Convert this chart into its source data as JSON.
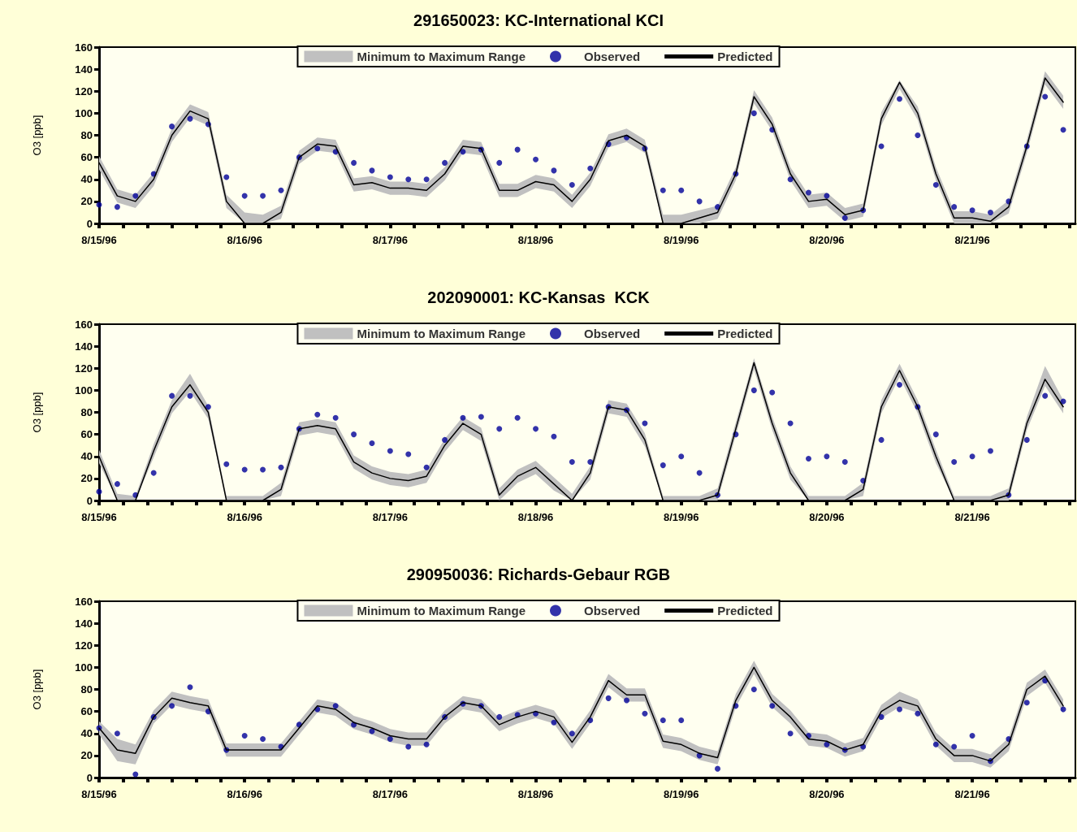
{
  "chart_data": [
    {
      "type": "line",
      "title": "291650023: KC-International KCI",
      "ylabel": "O3 [ppb]",
      "ylim": [
        0,
        160
      ],
      "yticks": [
        0,
        20,
        40,
        60,
        80,
        100,
        120,
        140,
        160
      ],
      "xlim": [
        "1996-08-15",
        "1996-08-21T17:00"
      ],
      "xticks": [
        {
          "value": "1996-08-15",
          "label": "8/15/96"
        },
        {
          "value": "1996-08-15T04:00",
          "label": null
        },
        {
          "value": "1996-08-15T08:00",
          "label": null
        },
        {
          "value": "1996-08-15T12:00",
          "label": null
        },
        {
          "value": "1996-08-15T16:00",
          "label": null
        },
        {
          "value": "1996-08-15T20:00",
          "label": null
        },
        {
          "value": "1996-08-16",
          "label": "8/16/96"
        },
        {
          "value": "1996-08-16T04:00",
          "label": null
        },
        {
          "value": "1996-08-16T08:00",
          "label": null
        },
        {
          "value": "1996-08-16T12:00",
          "label": null
        },
        {
          "value": "1996-08-16T16:00",
          "label": null
        },
        {
          "value": "1996-08-16T20:00",
          "label": null
        },
        {
          "value": "1996-08-17",
          "label": "8/17/96"
        },
        {
          "value": "1996-08-17T04:00",
          "label": null
        },
        {
          "value": "1996-08-17T08:00",
          "label": null
        },
        {
          "value": "1996-08-17T12:00",
          "label": null
        },
        {
          "value": "1996-08-17T16:00",
          "label": null
        },
        {
          "value": "1996-08-17T20:00",
          "label": null
        },
        {
          "value": "1996-08-18",
          "label": "8/18/96"
        },
        {
          "value": "1996-08-18T04:00",
          "label": null
        },
        {
          "value": "1996-08-18T08:00",
          "label": null
        },
        {
          "value": "1996-08-18T12:00",
          "label": null
        },
        {
          "value": "1996-08-18T16:00",
          "label": null
        },
        {
          "value": "1996-08-18T20:00",
          "label": null
        },
        {
          "value": "1996-08-19",
          "label": "8/19/96"
        },
        {
          "value": "1996-08-19T04:00",
          "label": null
        },
        {
          "value": "1996-08-19T08:00",
          "label": null
        },
        {
          "value": "1996-08-19T12:00",
          "label": null
        },
        {
          "value": "1996-08-19T16:00",
          "label": null
        },
        {
          "value": "1996-08-19T20:00",
          "label": null
        },
        {
          "value": "1996-08-20",
          "label": "8/20/96"
        },
        {
          "value": "1996-08-20T04:00",
          "label": null
        },
        {
          "value": "1996-08-20T08:00",
          "label": null
        },
        {
          "value": "1996-08-20T12:00",
          "label": null
        },
        {
          "value": "1996-08-20T16:00",
          "label": null
        },
        {
          "value": "1996-08-20T20:00",
          "label": null
        },
        {
          "value": "1996-08-21",
          "label": "8/21/96"
        },
        {
          "value": "1996-08-21T04:00",
          "label": null
        },
        {
          "value": "1996-08-21T08:00",
          "label": null
        },
        {
          "value": "1996-08-21T12:00",
          "label": null
        },
        {
          "value": "1996-08-21T16:00",
          "label": null
        }
      ],
      "x": [
        "1996-08-15T00:00",
        "1996-08-15T03:00",
        "1996-08-15T06:00",
        "1996-08-15T09:00",
        "1996-08-15T12:00",
        "1996-08-15T15:00",
        "1996-08-15T18:00",
        "1996-08-15T21:00",
        "1996-08-16T00:00",
        "1996-08-16T03:00",
        "1996-08-16T06:00",
        "1996-08-16T09:00",
        "1996-08-16T12:00",
        "1996-08-16T15:00",
        "1996-08-16T18:00",
        "1996-08-16T21:00",
        "1996-08-17T00:00",
        "1996-08-17T03:00",
        "1996-08-17T06:00",
        "1996-08-17T09:00",
        "1996-08-17T12:00",
        "1996-08-17T15:00",
        "1996-08-17T18:00",
        "1996-08-17T21:00",
        "1996-08-18T00:00",
        "1996-08-18T03:00",
        "1996-08-18T06:00",
        "1996-08-18T09:00",
        "1996-08-18T12:00",
        "1996-08-18T15:00",
        "1996-08-18T18:00",
        "1996-08-18T21:00",
        "1996-08-19T00:00",
        "1996-08-19T03:00",
        "1996-08-19T06:00",
        "1996-08-19T09:00",
        "1996-08-19T12:00",
        "1996-08-19T15:00",
        "1996-08-19T18:00",
        "1996-08-19T21:00",
        "1996-08-20T00:00",
        "1996-08-20T03:00",
        "1996-08-20T06:00",
        "1996-08-20T09:00",
        "1996-08-20T12:00",
        "1996-08-20T15:00",
        "1996-08-20T18:00",
        "1996-08-20T21:00",
        "1996-08-21T00:00",
        "1996-08-21T03:00",
        "1996-08-21T06:00",
        "1996-08-21T09:00",
        "1996-08-21T12:00",
        "1996-08-21T15:00"
      ],
      "legend": "top",
      "annotations": [
        "Minimum to Maximum Range"
      ],
      "series": [
        {
          "name": "Observed",
          "type": "scatter",
          "color": "#000099",
          "marker": "circle",
          "values": [
            17,
            15,
            25,
            45,
            88,
            95,
            90,
            42,
            25,
            25,
            30,
            60,
            68,
            65,
            55,
            48,
            42,
            40,
            40,
            55,
            65,
            67,
            55,
            67,
            58,
            48,
            35,
            50,
            72,
            78,
            68,
            30,
            30,
            20,
            15,
            45,
            100,
            85,
            40,
            28,
            25,
            5,
            12,
            70,
            113,
            80,
            35,
            15,
            12,
            10,
            20,
            70,
            115,
            85
          ]
        },
        {
          "name": "Predicted",
          "color": "#000000",
          "marker": "none",
          "values": [
            55,
            25,
            20,
            40,
            80,
            102,
            95,
            20,
            0,
            0,
            10,
            60,
            72,
            70,
            35,
            37,
            32,
            32,
            30,
            45,
            70,
            68,
            30,
            30,
            38,
            35,
            20,
            40,
            75,
            80,
            70,
            0,
            0,
            5,
            10,
            45,
            115,
            90,
            45,
            20,
            22,
            8,
            12,
            95,
            128,
            100,
            45,
            5,
            5,
            2,
            15,
            70,
            132,
            110
          ],
          "lower": [
            49,
            19,
            14,
            34,
            74,
            96,
            89,
            14,
            0,
            0,
            4,
            54,
            66,
            64,
            29,
            31,
            26,
            26,
            24,
            39,
            64,
            62,
            24,
            24,
            32,
            29,
            14,
            34,
            69,
            74,
            64,
            0,
            0,
            0,
            4,
            39,
            109,
            84,
            39,
            14,
            16,
            2,
            6,
            89,
            122,
            94,
            39,
            0,
            0,
            0,
            9,
            64,
            126,
            104
          ],
          "upper": [
            61,
            31,
            26,
            46,
            86,
            108,
            101,
            26,
            10,
            8,
            16,
            66,
            78,
            76,
            41,
            43,
            38,
            38,
            36,
            51,
            76,
            74,
            36,
            36,
            44,
            41,
            26,
            46,
            81,
            86,
            76,
            8,
            8,
            12,
            16,
            51,
            121,
            96,
            51,
            26,
            28,
            14,
            18,
            101,
            130,
            106,
            51,
            11,
            11,
            8,
            21,
            76,
            138,
            116
          ]
        }
      ]
    },
    {
      "type": "line",
      "title": "202090001: KC-Kansas  KCK",
      "ylabel": "O3 [ppb]",
      "ylim": [
        0,
        160
      ],
      "yticks": [
        0,
        20,
        40,
        60,
        80,
        100,
        120,
        140,
        160
      ],
      "xlim": [
        "1996-08-15",
        "1996-08-21T17:00"
      ],
      "xticks": [
        {
          "value": "1996-08-15",
          "label": "8/15/96"
        },
        {
          "value": "1996-08-15T04:00",
          "label": null
        },
        {
          "value": "1996-08-15T08:00",
          "label": null
        },
        {
          "value": "1996-08-15T12:00",
          "label": null
        },
        {
          "value": "1996-08-15T16:00",
          "label": null
        },
        {
          "value": "1996-08-15T20:00",
          "label": null
        },
        {
          "value": "1996-08-16",
          "label": "8/16/96"
        },
        {
          "value": "1996-08-16T04:00",
          "label": null
        },
        {
          "value": "1996-08-16T08:00",
          "label": null
        },
        {
          "value": "1996-08-16T12:00",
          "label": null
        },
        {
          "value": "1996-08-16T16:00",
          "label": null
        },
        {
          "value": "1996-08-16T20:00",
          "label": null
        },
        {
          "value": "1996-08-17",
          "label": "8/17/96"
        },
        {
          "value": "1996-08-17T04:00",
          "label": null
        },
        {
          "value": "1996-08-17T08:00",
          "label": null
        },
        {
          "value": "1996-08-17T12:00",
          "label": null
        },
        {
          "value": "1996-08-17T16:00",
          "label": null
        },
        {
          "value": "1996-08-17T20:00",
          "label": null
        },
        {
          "value": "1996-08-18",
          "label": "8/18/96"
        },
        {
          "value": "1996-08-18T04:00",
          "label": null
        },
        {
          "value": "1996-08-18T08:00",
          "label": null
        },
        {
          "value": "1996-08-18T12:00",
          "label": null
        },
        {
          "value": "1996-08-18T16:00",
          "label": null
        },
        {
          "value": "1996-08-18T20:00",
          "label": null
        },
        {
          "value": "1996-08-19",
          "label": "8/19/96"
        },
        {
          "value": "1996-08-19T04:00",
          "label": null
        },
        {
          "value": "1996-08-19T08:00",
          "label": null
        },
        {
          "value": "1996-08-19T12:00",
          "label": null
        },
        {
          "value": "1996-08-19T16:00",
          "label": null
        },
        {
          "value": "1996-08-19T20:00",
          "label": null
        },
        {
          "value": "1996-08-20",
          "label": "8/20/96"
        },
        {
          "value": "1996-08-20T04:00",
          "label": null
        },
        {
          "value": "1996-08-20T08:00",
          "label": null
        },
        {
          "value": "1996-08-20T12:00",
          "label": null
        },
        {
          "value": "1996-08-20T16:00",
          "label": null
        },
        {
          "value": "1996-08-20T20:00",
          "label": null
        },
        {
          "value": "1996-08-21",
          "label": "8/21/96"
        },
        {
          "value": "1996-08-21T04:00",
          "label": null
        },
        {
          "value": "1996-08-21T08:00",
          "label": null
        },
        {
          "value": "1996-08-21T12:00",
          "label": null
        },
        {
          "value": "1996-08-21T16:00",
          "label": null
        }
      ],
      "x": [
        "1996-08-15T00:00",
        "1996-08-15T03:00",
        "1996-08-15T06:00",
        "1996-08-15T09:00",
        "1996-08-15T12:00",
        "1996-08-15T15:00",
        "1996-08-15T18:00",
        "1996-08-15T21:00",
        "1996-08-16T00:00",
        "1996-08-16T03:00",
        "1996-08-16T06:00",
        "1996-08-16T09:00",
        "1996-08-16T12:00",
        "1996-08-16T15:00",
        "1996-08-16T18:00",
        "1996-08-16T21:00",
        "1996-08-17T00:00",
        "1996-08-17T03:00",
        "1996-08-17T06:00",
        "1996-08-17T09:00",
        "1996-08-17T12:00",
        "1996-08-17T15:00",
        "1996-08-17T18:00",
        "1996-08-17T21:00",
        "1996-08-18T00:00",
        "1996-08-18T03:00",
        "1996-08-18T06:00",
        "1996-08-18T09:00",
        "1996-08-18T12:00",
        "1996-08-18T15:00",
        "1996-08-18T18:00",
        "1996-08-18T21:00",
        "1996-08-19T00:00",
        "1996-08-19T03:00",
        "1996-08-19T06:00",
        "1996-08-19T09:00",
        "1996-08-19T12:00",
        "1996-08-19T15:00",
        "1996-08-19T18:00",
        "1996-08-19T21:00",
        "1996-08-20T00:00",
        "1996-08-20T03:00",
        "1996-08-20T06:00",
        "1996-08-20T09:00",
        "1996-08-20T12:00",
        "1996-08-20T15:00",
        "1996-08-20T18:00",
        "1996-08-20T21:00",
        "1996-08-21T00:00",
        "1996-08-21T03:00",
        "1996-08-21T06:00",
        "1996-08-21T09:00",
        "1996-08-21T12:00",
        "1996-08-21T15:00"
      ],
      "legend": "top",
      "annotations": [
        "Minimum to Maximum Range"
      ],
      "series": [
        {
          "name": "Observed",
          "type": "scatter",
          "color": "#000099",
          "marker": "circle",
          "values": [
            8,
            15,
            5,
            25,
            95,
            95,
            85,
            33,
            28,
            28,
            30,
            65,
            78,
            75,
            60,
            52,
            45,
            42,
            30,
            55,
            75,
            76,
            65,
            75,
            65,
            58,
            35,
            35,
            85,
            82,
            70,
            32,
            40,
            25,
            5,
            60,
            100,
            98,
            70,
            38,
            40,
            35,
            18,
            55,
            105,
            85,
            60,
            35,
            40,
            45,
            5,
            55,
            95,
            90
          ]
        },
        {
          "name": "Predicted",
          "color": "#000000",
          "marker": "none",
          "values": [
            40,
            0,
            0,
            45,
            85,
            105,
            80,
            0,
            0,
            0,
            10,
            65,
            68,
            65,
            35,
            25,
            20,
            18,
            22,
            50,
            70,
            60,
            5,
            22,
            30,
            15,
            0,
            25,
            85,
            82,
            55,
            0,
            0,
            0,
            5,
            65,
            125,
            70,
            25,
            0,
            0,
            0,
            10,
            85,
            118,
            85,
            40,
            0,
            0,
            0,
            5,
            70,
            110,
            85
          ],
          "lower": [
            34,
            0,
            0,
            39,
            79,
            99,
            74,
            0,
            0,
            0,
            4,
            59,
            62,
            59,
            29,
            19,
            14,
            12,
            16,
            44,
            64,
            54,
            0,
            16,
            24,
            9,
            0,
            19,
            79,
            76,
            49,
            0,
            0,
            0,
            0,
            59,
            119,
            64,
            19,
            0,
            0,
            0,
            4,
            79,
            112,
            79,
            34,
            0,
            0,
            0,
            0,
            64,
            104,
            79
          ],
          "upper": [
            46,
            6,
            4,
            51,
            91,
            115,
            86,
            4,
            4,
            4,
            16,
            71,
            74,
            71,
            41,
            31,
            26,
            24,
            28,
            56,
            76,
            66,
            11,
            28,
            36,
            21,
            6,
            31,
            91,
            88,
            61,
            4,
            4,
            4,
            11,
            71,
            129,
            76,
            31,
            4,
            4,
            4,
            16,
            91,
            124,
            91,
            46,
            4,
            4,
            4,
            11,
            76,
            122,
            91
          ]
        }
      ]
    },
    {
      "type": "line",
      "title": "290950036: Richards-Gebaur RGB",
      "ylabel": "O3 [ppb]",
      "ylim": [
        0,
        160
      ],
      "yticks": [
        0,
        20,
        40,
        60,
        80,
        100,
        120,
        140,
        160
      ],
      "xlim": [
        "1996-08-15",
        "1996-08-21T17:00"
      ],
      "xticks": [
        {
          "value": "1996-08-15",
          "label": "8/15/96"
        },
        {
          "value": "1996-08-15T04:00",
          "label": null
        },
        {
          "value": "1996-08-15T08:00",
          "label": null
        },
        {
          "value": "1996-08-15T12:00",
          "label": null
        },
        {
          "value": "1996-08-15T16:00",
          "label": null
        },
        {
          "value": "1996-08-15T20:00",
          "label": null
        },
        {
          "value": "1996-08-16",
          "label": "8/16/96"
        },
        {
          "value": "1996-08-16T04:00",
          "label": null
        },
        {
          "value": "1996-08-16T08:00",
          "label": null
        },
        {
          "value": "1996-08-16T12:00",
          "label": null
        },
        {
          "value": "1996-08-16T16:00",
          "label": null
        },
        {
          "value": "1996-08-16T20:00",
          "label": null
        },
        {
          "value": "1996-08-17",
          "label": "8/17/96"
        },
        {
          "value": "1996-08-17T04:00",
          "label": null
        },
        {
          "value": "1996-08-17T08:00",
          "label": null
        },
        {
          "value": "1996-08-17T12:00",
          "label": null
        },
        {
          "value": "1996-08-17T16:00",
          "label": null
        },
        {
          "value": "1996-08-17T20:00",
          "label": null
        },
        {
          "value": "1996-08-18",
          "label": "8/18/96"
        },
        {
          "value": "1996-08-18T04:00",
          "label": null
        },
        {
          "value": "1996-08-18T08:00",
          "label": null
        },
        {
          "value": "1996-08-18T12:00",
          "label": null
        },
        {
          "value": "1996-08-18T16:00",
          "label": null
        },
        {
          "value": "1996-08-18T20:00",
          "label": null
        },
        {
          "value": "1996-08-19",
          "label": "8/19/96"
        },
        {
          "value": "1996-08-19T04:00",
          "label": null
        },
        {
          "value": "1996-08-19T08:00",
          "label": null
        },
        {
          "value": "1996-08-19T12:00",
          "label": null
        },
        {
          "value": "1996-08-19T16:00",
          "label": null
        },
        {
          "value": "1996-08-19T20:00",
          "label": null
        },
        {
          "value": "1996-08-20",
          "label": "8/20/96"
        },
        {
          "value": "1996-08-20T04:00",
          "label": null
        },
        {
          "value": "1996-08-20T08:00",
          "label": null
        },
        {
          "value": "1996-08-20T12:00",
          "label": null
        },
        {
          "value": "1996-08-20T16:00",
          "label": null
        },
        {
          "value": "1996-08-20T20:00",
          "label": null
        },
        {
          "value": "1996-08-21",
          "label": "8/21/96"
        },
        {
          "value": "1996-08-21T04:00",
          "label": null
        },
        {
          "value": "1996-08-21T08:00",
          "label": null
        },
        {
          "value": "1996-08-21T12:00",
          "label": null
        },
        {
          "value": "1996-08-21T16:00",
          "label": null
        }
      ],
      "x": [
        "1996-08-15T00:00",
        "1996-08-15T03:00",
        "1996-08-15T06:00",
        "1996-08-15T09:00",
        "1996-08-15T12:00",
        "1996-08-15T15:00",
        "1996-08-15T18:00",
        "1996-08-15T21:00",
        "1996-08-16T00:00",
        "1996-08-16T03:00",
        "1996-08-16T06:00",
        "1996-08-16T09:00",
        "1996-08-16T12:00",
        "1996-08-16T15:00",
        "1996-08-16T18:00",
        "1996-08-16T21:00",
        "1996-08-17T00:00",
        "1996-08-17T03:00",
        "1996-08-17T06:00",
        "1996-08-17T09:00",
        "1996-08-17T12:00",
        "1996-08-17T15:00",
        "1996-08-17T18:00",
        "1996-08-17T21:00",
        "1996-08-18T00:00",
        "1996-08-18T03:00",
        "1996-08-18T06:00",
        "1996-08-18T09:00",
        "1996-08-18T12:00",
        "1996-08-18T15:00",
        "1996-08-18T18:00",
        "1996-08-18T21:00",
        "1996-08-19T00:00",
        "1996-08-19T03:00",
        "1996-08-19T06:00",
        "1996-08-19T09:00",
        "1996-08-19T12:00",
        "1996-08-19T15:00",
        "1996-08-19T18:00",
        "1996-08-19T21:00",
        "1996-08-20T00:00",
        "1996-08-20T03:00",
        "1996-08-20T06:00",
        "1996-08-20T09:00",
        "1996-08-20T12:00",
        "1996-08-20T15:00",
        "1996-08-20T18:00",
        "1996-08-20T21:00",
        "1996-08-21T00:00",
        "1996-08-21T03:00",
        "1996-08-21T06:00",
        "1996-08-21T09:00",
        "1996-08-21T12:00",
        "1996-08-21T15:00"
      ],
      "legend": "top",
      "annotations": [
        "Minimum to Maximum Range"
      ],
      "series": [
        {
          "name": "Observed",
          "type": "scatter",
          "color": "#000099",
          "marker": "circle",
          "values": [
            45,
            40,
            3,
            55,
            65,
            82,
            60,
            25,
            38,
            35,
            28,
            48,
            62,
            65,
            48,
            42,
            35,
            28,
            30,
            55,
            67,
            65,
            55,
            57,
            58,
            50,
            40,
            52,
            72,
            70,
            58,
            52,
            52,
            20,
            8,
            65,
            80,
            65,
            40,
            38,
            30,
            25,
            28,
            55,
            62,
            58,
            30,
            28,
            38,
            15,
            35,
            68,
            88,
            62
          ]
        },
        {
          "name": "Predicted",
          "color": "#000000",
          "marker": "none",
          "values": [
            45,
            25,
            22,
            55,
            72,
            68,
            65,
            25,
            25,
            25,
            25,
            45,
            65,
            62,
            50,
            45,
            38,
            35,
            35,
            55,
            68,
            65,
            48,
            55,
            60,
            55,
            32,
            55,
            88,
            75,
            75,
            33,
            30,
            22,
            18,
            70,
            100,
            70,
            55,
            35,
            33,
            25,
            30,
            60,
            70,
            65,
            35,
            20,
            20,
            15,
            30,
            80,
            92,
            65
          ],
          "lower": [
            39,
            15,
            12,
            49,
            66,
            62,
            59,
            19,
            19,
            19,
            19,
            39,
            59,
            56,
            44,
            39,
            32,
            29,
            29,
            49,
            62,
            59,
            42,
            49,
            54,
            49,
            26,
            49,
            82,
            69,
            69,
            27,
            24,
            16,
            12,
            64,
            94,
            64,
            49,
            29,
            27,
            19,
            24,
            54,
            64,
            59,
            29,
            14,
            14,
            9,
            24,
            74,
            86,
            59
          ],
          "upper": [
            51,
            35,
            30,
            61,
            78,
            74,
            71,
            31,
            31,
            31,
            31,
            51,
            71,
            68,
            56,
            51,
            44,
            41,
            41,
            61,
            74,
            71,
            54,
            61,
            66,
            61,
            38,
            61,
            94,
            81,
            81,
            39,
            36,
            28,
            24,
            76,
            106,
            76,
            61,
            41,
            39,
            31,
            36,
            66,
            78,
            71,
            41,
            26,
            26,
            21,
            36,
            86,
            98,
            71
          ]
        }
      ]
    }
  ]
}
